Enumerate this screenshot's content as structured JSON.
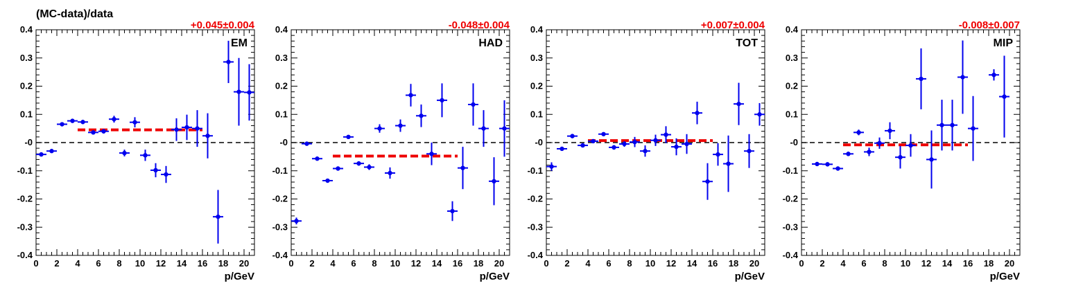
{
  "figure": {
    "ylabel": "(MC-data)/data",
    "xlabel": "p/GeV"
  },
  "colors": {
    "points": "#0000ee",
    "fit": "#ee0000",
    "zero_line": "#000000",
    "axes": "#000000"
  },
  "chart_data": [
    {
      "type": "scatter",
      "panel_label": "EM",
      "fit_text": "+0.045±0.004",
      "fit": {
        "value": 0.045,
        "x_range": [
          4,
          16
        ]
      },
      "xlim": [
        0,
        21
      ],
      "ylim": [
        -0.4,
        0.4
      ],
      "xticks": [
        0,
        2,
        4,
        6,
        8,
        10,
        12,
        14,
        16,
        18,
        20
      ],
      "yticks": [
        -0.4,
        -0.3,
        -0.2,
        -0.1,
        0,
        0.1,
        0.2,
        0.3,
        0.4
      ],
      "ytick_labels": [
        "-0.4",
        "-0.3",
        "-0.2",
        "-0.1",
        "-0",
        "0.1",
        "0.2",
        "0.3",
        "0.4"
      ],
      "points": [
        {
          "x": 0.5,
          "y": -0.042,
          "err": 0.006
        },
        {
          "x": 1.5,
          "y": -0.03,
          "err": 0.005
        },
        {
          "x": 2.5,
          "y": 0.065,
          "err": 0.005
        },
        {
          "x": 3.5,
          "y": 0.077,
          "err": 0.005
        },
        {
          "x": 4.5,
          "y": 0.073,
          "err": 0.006
        },
        {
          "x": 5.5,
          "y": 0.036,
          "err": 0.007
        },
        {
          "x": 6.5,
          "y": 0.04,
          "err": 0.008
        },
        {
          "x": 7.5,
          "y": 0.083,
          "err": 0.012
        },
        {
          "x": 8.5,
          "y": -0.037,
          "err": 0.012
        },
        {
          "x": 9.5,
          "y": 0.072,
          "err": 0.018
        },
        {
          "x": 10.5,
          "y": -0.045,
          "err": 0.02
        },
        {
          "x": 11.5,
          "y": -0.098,
          "err": 0.025
        },
        {
          "x": 12.5,
          "y": -0.113,
          "err": 0.03
        },
        {
          "x": 13.5,
          "y": 0.046,
          "err": 0.04
        },
        {
          "x": 14.5,
          "y": 0.054,
          "err": 0.045
        },
        {
          "x": 15.5,
          "y": 0.05,
          "err": 0.065
        },
        {
          "x": 16.5,
          "y": 0.024,
          "err": 0.08
        },
        {
          "x": 17.5,
          "y": -0.263,
          "err": 0.095
        },
        {
          "x": 18.5,
          "y": 0.286,
          "err": 0.075
        },
        {
          "x": 19.5,
          "y": 0.18,
          "err": 0.12
        },
        {
          "x": 20.5,
          "y": 0.178,
          "err": 0.1
        }
      ]
    },
    {
      "type": "scatter",
      "panel_label": "HAD",
      "fit_text": "-0.048±0.004",
      "fit": {
        "value": -0.048,
        "x_range": [
          4,
          16
        ]
      },
      "xlim": [
        0,
        21
      ],
      "ylim": [
        -0.4,
        0.4
      ],
      "xticks": [
        0,
        2,
        4,
        6,
        8,
        10,
        12,
        14,
        16,
        18,
        20
      ],
      "yticks": [
        -0.4,
        -0.3,
        -0.2,
        -0.1,
        0,
        0.1,
        0.2,
        0.3,
        0.4
      ],
      "ytick_labels": [
        "-0.4",
        "-0.3",
        "-0.2",
        "-0.1",
        "-0",
        "0.1",
        "0.2",
        "0.3",
        "0.4"
      ],
      "points": [
        {
          "x": 0.5,
          "y": -0.278,
          "err": 0.012
        },
        {
          "x": 1.5,
          "y": -0.004,
          "err": 0.005
        },
        {
          "x": 2.5,
          "y": -0.057,
          "err": 0.005
        },
        {
          "x": 3.5,
          "y": -0.135,
          "err": 0.005
        },
        {
          "x": 4.5,
          "y": -0.092,
          "err": 0.006
        },
        {
          "x": 5.5,
          "y": 0.02,
          "err": 0.006
        },
        {
          "x": 6.5,
          "y": -0.074,
          "err": 0.008
        },
        {
          "x": 7.5,
          "y": -0.087,
          "err": 0.01
        },
        {
          "x": 8.5,
          "y": 0.05,
          "err": 0.015
        },
        {
          "x": 9.5,
          "y": -0.108,
          "err": 0.02
        },
        {
          "x": 10.5,
          "y": 0.06,
          "err": 0.022
        },
        {
          "x": 11.5,
          "y": 0.168,
          "err": 0.04
        },
        {
          "x": 12.5,
          "y": 0.095,
          "err": 0.04
        },
        {
          "x": 13.5,
          "y": -0.04,
          "err": 0.04
        },
        {
          "x": 14.5,
          "y": 0.15,
          "err": 0.06
        },
        {
          "x": 15.5,
          "y": -0.243,
          "err": 0.035
        },
        {
          "x": 16.5,
          "y": -0.09,
          "err": 0.075
        },
        {
          "x": 17.5,
          "y": 0.135,
          "err": 0.075
        },
        {
          "x": 18.5,
          "y": 0.05,
          "err": 0.065
        },
        {
          "x": 19.5,
          "y": -0.137,
          "err": 0.085
        },
        {
          "x": 20.5,
          "y": 0.05,
          "err": 0.1
        }
      ]
    },
    {
      "type": "scatter",
      "panel_label": "TOT",
      "fit_text": "+0.007±0.004",
      "fit": {
        "value": 0.007,
        "x_range": [
          4,
          16
        ]
      },
      "xlim": [
        0,
        21
      ],
      "ylim": [
        -0.4,
        0.4
      ],
      "xticks": [
        0,
        2,
        4,
        6,
        8,
        10,
        12,
        14,
        16,
        18,
        20
      ],
      "yticks": [
        -0.4,
        -0.3,
        -0.2,
        -0.1,
        0,
        0.1,
        0.2,
        0.3,
        0.4
      ],
      "ytick_labels": [
        "-0.4",
        "-0.3",
        "-0.2",
        "-0.1",
        "-0",
        "0.1",
        "0.2",
        "0.3",
        "0.4"
      ],
      "points": [
        {
          "x": 0.5,
          "y": -0.085,
          "err": 0.015
        },
        {
          "x": 1.5,
          "y": -0.022,
          "err": 0.006
        },
        {
          "x": 2.5,
          "y": 0.023,
          "err": 0.005
        },
        {
          "x": 3.5,
          "y": -0.01,
          "err": 0.005
        },
        {
          "x": 4.5,
          "y": 0.005,
          "err": 0.005
        },
        {
          "x": 5.5,
          "y": 0.03,
          "err": 0.006
        },
        {
          "x": 6.5,
          "y": -0.017,
          "err": 0.008
        },
        {
          "x": 7.5,
          "y": -0.005,
          "err": 0.01
        },
        {
          "x": 8.5,
          "y": 0.002,
          "err": 0.018
        },
        {
          "x": 9.5,
          "y": -0.03,
          "err": 0.02
        },
        {
          "x": 10.5,
          "y": 0.008,
          "err": 0.02
        },
        {
          "x": 11.5,
          "y": 0.028,
          "err": 0.03
        },
        {
          "x": 12.5,
          "y": -0.015,
          "err": 0.03
        },
        {
          "x": 13.5,
          "y": -0.005,
          "err": 0.035
        },
        {
          "x": 14.5,
          "y": 0.105,
          "err": 0.04
        },
        {
          "x": 15.5,
          "y": -0.138,
          "err": 0.065
        },
        {
          "x": 16.5,
          "y": -0.042,
          "err": 0.04
        },
        {
          "x": 17.5,
          "y": -0.075,
          "err": 0.1
        },
        {
          "x": 18.5,
          "y": 0.137,
          "err": 0.075
        },
        {
          "x": 19.5,
          "y": -0.03,
          "err": 0.06
        },
        {
          "x": 20.5,
          "y": 0.1,
          "err": 0.04
        }
      ]
    },
    {
      "type": "scatter",
      "panel_label": "MIP",
      "fit_text": "-0.008±0.007",
      "fit": {
        "value": -0.008,
        "x_range": [
          4,
          16
        ]
      },
      "xlim": [
        0,
        21
      ],
      "ylim": [
        -0.4,
        0.4
      ],
      "xticks": [
        0,
        2,
        4,
        6,
        8,
        10,
        12,
        14,
        16,
        18,
        20
      ],
      "yticks": [
        -0.4,
        -0.3,
        -0.2,
        -0.1,
        0,
        0.1,
        0.2,
        0.3,
        0.4
      ],
      "ytick_labels": [
        "-0.4",
        "-0.3",
        "-0.2",
        "-0.1",
        "-0",
        "0.1",
        "0.2",
        "0.3",
        "0.4"
      ],
      "points": [
        {
          "x": 1.5,
          "y": -0.076,
          "err": 0.005
        },
        {
          "x": 2.5,
          "y": -0.077,
          "err": 0.005
        },
        {
          "x": 3.5,
          "y": -0.092,
          "err": 0.007
        },
        {
          "x": 4.5,
          "y": -0.04,
          "err": 0.008
        },
        {
          "x": 5.5,
          "y": 0.036,
          "err": 0.01
        },
        {
          "x": 6.5,
          "y": -0.033,
          "err": 0.015
        },
        {
          "x": 7.5,
          "y": -0.002,
          "err": 0.02
        },
        {
          "x": 8.5,
          "y": 0.042,
          "err": 0.03
        },
        {
          "x": 9.5,
          "y": -0.052,
          "err": 0.04
        },
        {
          "x": 10.5,
          "y": -0.01,
          "err": 0.04
        },
        {
          "x": 11.5,
          "y": 0.226,
          "err": 0.108
        },
        {
          "x": 12.5,
          "y": -0.06,
          "err": 0.103
        },
        {
          "x": 13.5,
          "y": 0.062,
          "err": 0.09
        },
        {
          "x": 14.5,
          "y": 0.062,
          "err": 0.09
        },
        {
          "x": 15.5,
          "y": 0.232,
          "err": 0.13
        },
        {
          "x": 16.5,
          "y": 0.05,
          "err": 0.115
        },
        {
          "x": 18.5,
          "y": 0.24,
          "err": 0.02
        },
        {
          "x": 19.5,
          "y": 0.163,
          "err": 0.145
        }
      ]
    }
  ]
}
